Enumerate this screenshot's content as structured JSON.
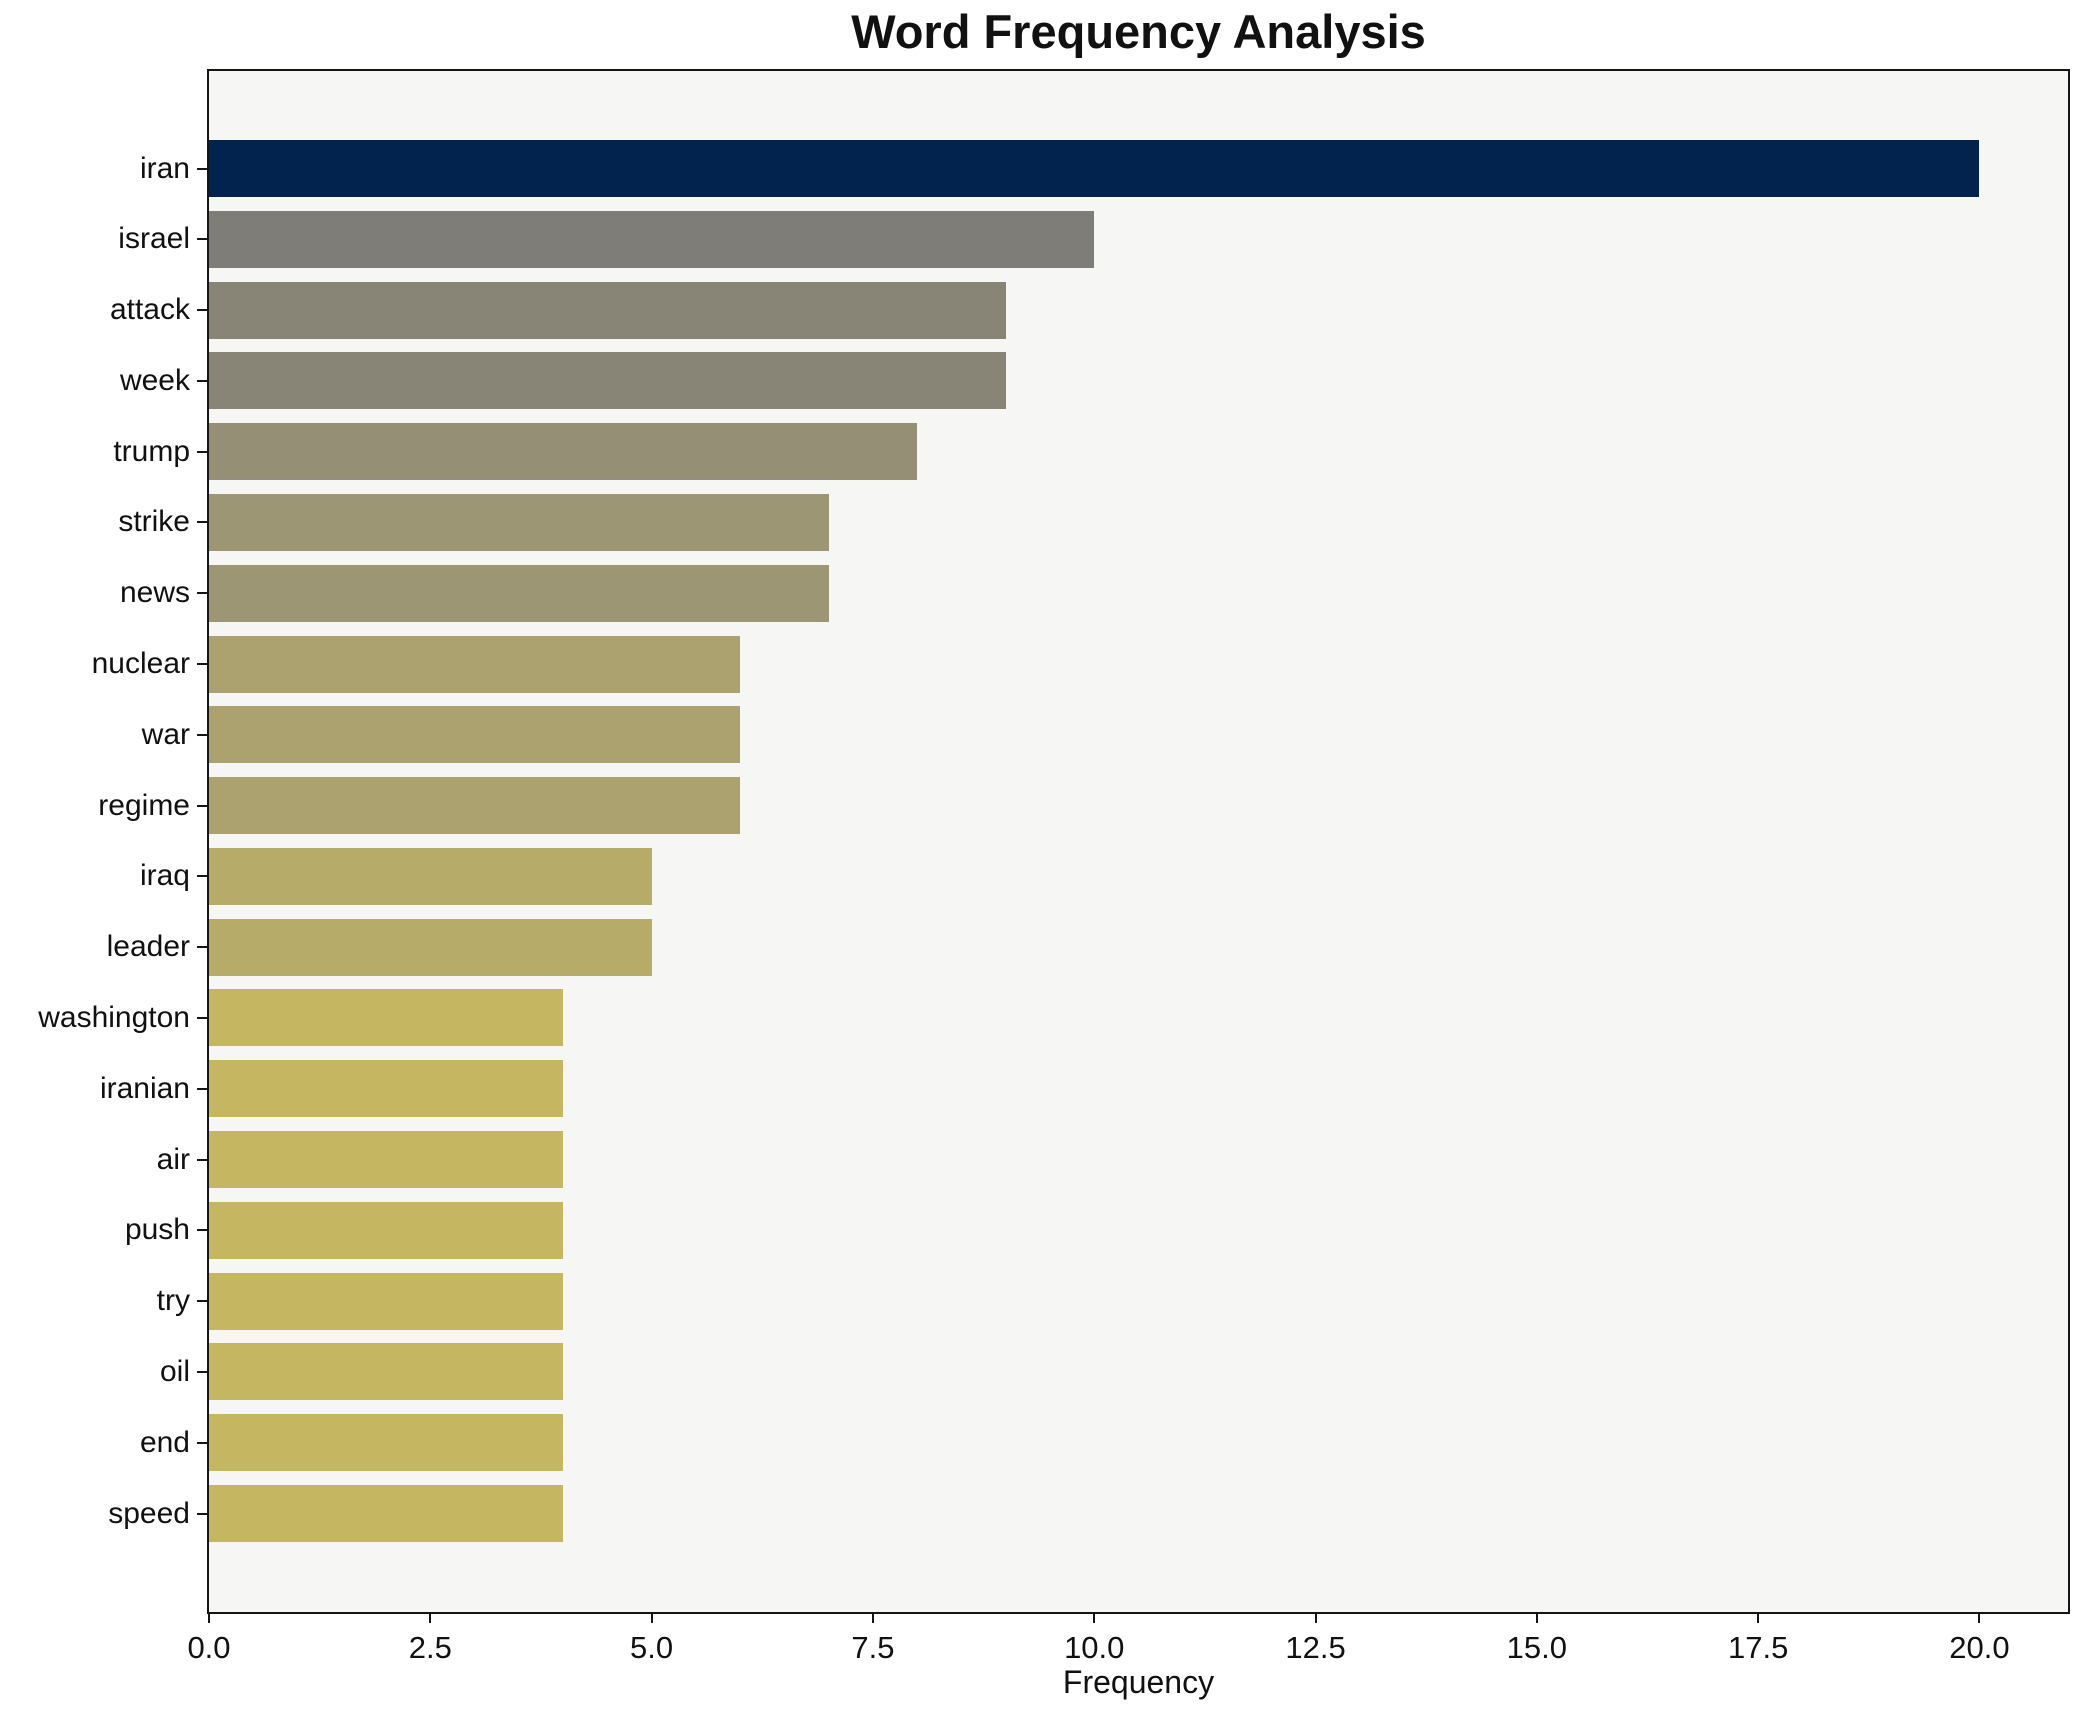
{
  "chart_data": {
    "type": "bar",
    "orientation": "horizontal",
    "title": "Word Frequency Analysis",
    "xlabel": "Frequency",
    "ylabel": "",
    "categories": [
      "iran",
      "israel",
      "attack",
      "week",
      "trump",
      "strike",
      "news",
      "nuclear",
      "war",
      "regime",
      "iraq",
      "leader",
      "washington",
      "iranian",
      "air",
      "push",
      "try",
      "oil",
      "end",
      "speed"
    ],
    "values": [
      20,
      10,
      9,
      9,
      8,
      7,
      7,
      6,
      6,
      6,
      5,
      5,
      4,
      4,
      4,
      4,
      4,
      4,
      4,
      4
    ],
    "bar_colors": [
      "#02234e",
      "#7f7d77",
      "#888476",
      "#888476",
      "#948f75",
      "#9d9674",
      "#9d9674",
      "#aba26f",
      "#aba26f",
      "#aba26f",
      "#b7ab69",
      "#b7ab69",
      "#c5b761",
      "#c5b761",
      "#c5b761",
      "#c5b761",
      "#c5b761",
      "#c5b761",
      "#c5b761",
      "#c5b761"
    ],
    "xlim": [
      0,
      21
    ],
    "xticks": [
      0,
      2.5,
      5,
      7.5,
      10,
      12.5,
      15,
      17.5,
      20
    ],
    "xtick_labels": [
      "0.0",
      "2.5",
      "5.0",
      "7.5",
      "10.0",
      "12.5",
      "15.0",
      "17.5",
      "20.0"
    ],
    "grid": false,
    "legend_position": "none",
    "colors": {
      "figure_bg": "#ffffff",
      "plot_bg": "#f6f6f5",
      "spine": "#151515",
      "text": "#111111"
    }
  }
}
